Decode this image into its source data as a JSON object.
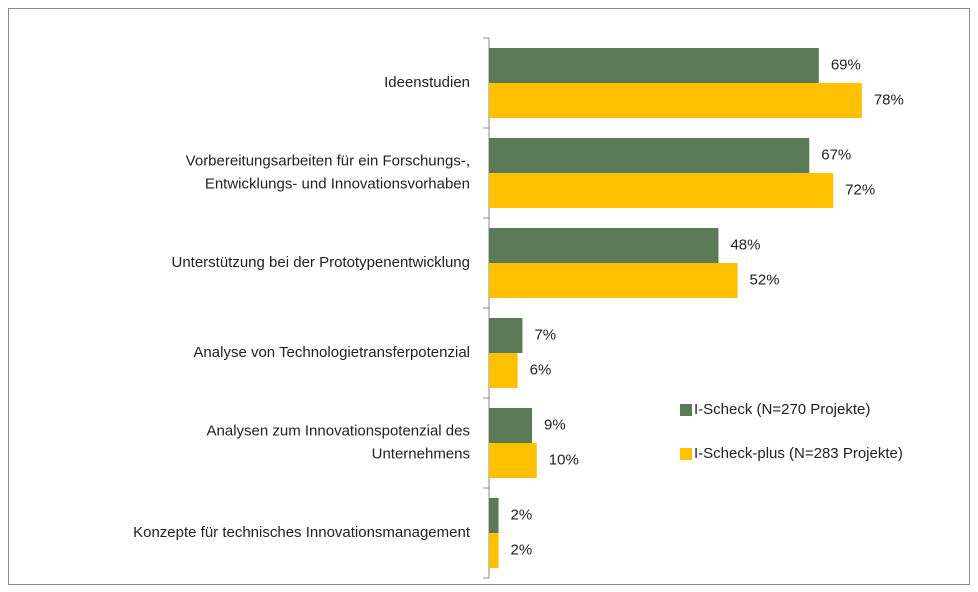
{
  "chart_data": {
    "type": "bar",
    "orientation": "horizontal",
    "categories": [
      "Ideenstudien",
      "Vorbereitungsarbeiten für ein Forschungs-,\nEntwicklungs- und Innovationsvorhaben",
      "Unterstützung bei der Prototypenentwicklung",
      "Analyse von Technologietransferpotenzial",
      "Analysen zum Innovationspotenzial des\nUnternehmens",
      "Konzepte für technisches Innovationsmanagement"
    ],
    "series": [
      {
        "name": "I-Scheck (N=270 Projekte)",
        "color": "#5b7b58",
        "values": [
          69,
          67,
          48,
          7,
          9,
          2
        ],
        "value_labels": [
          "69%",
          "67%",
          "48%",
          "7%",
          "9%",
          "2%"
        ]
      },
      {
        "name": "I-Scheck-plus (N=283 Projekte)",
        "color": "#ffc000",
        "values": [
          78,
          72,
          52,
          6,
          10,
          2
        ],
        "value_labels": [
          "78%",
          "72%",
          "52%",
          "6%",
          "10%",
          "2%"
        ]
      }
    ],
    "legend": "right"
  }
}
